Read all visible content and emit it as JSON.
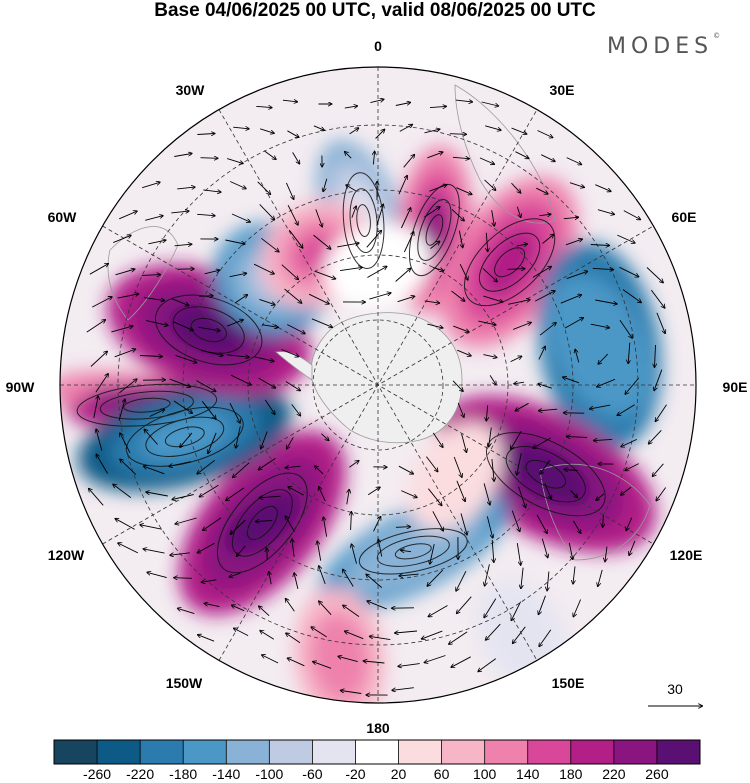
{
  "title": "Base 04/06/2025 00 UTC, valid 08/06/2025 00 UTC",
  "brand": "MODES",
  "brand_mark": "©",
  "longitude_labels": [
    "0",
    "30E",
    "60E",
    "90E",
    "120E",
    "150E",
    "180",
    "150W",
    "120W",
    "90W",
    "60W",
    "30W"
  ],
  "vector_reference": "30",
  "colorbar": {
    "colors": [
      "#17445e",
      "#0d5a86",
      "#2b7bae",
      "#4b98c7",
      "#89b2d6",
      "#bfcbe3",
      "#e4e4f1",
      "#ffffff",
      "#fbdde0",
      "#f7b6c7",
      "#ee82ad",
      "#d9479a",
      "#b11f87",
      "#8a1480",
      "#5a0f72"
    ],
    "tick_labels": [
      "-260",
      "-220",
      "-180",
      "-140",
      "-100",
      "-60",
      "-20",
      "20",
      "60",
      "100",
      "140",
      "180",
      "220",
      "260"
    ]
  },
  "colors": {
    "antarctica": "#efefef",
    "land_outline": "#9a9a9a",
    "frame": "#000000"
  }
}
